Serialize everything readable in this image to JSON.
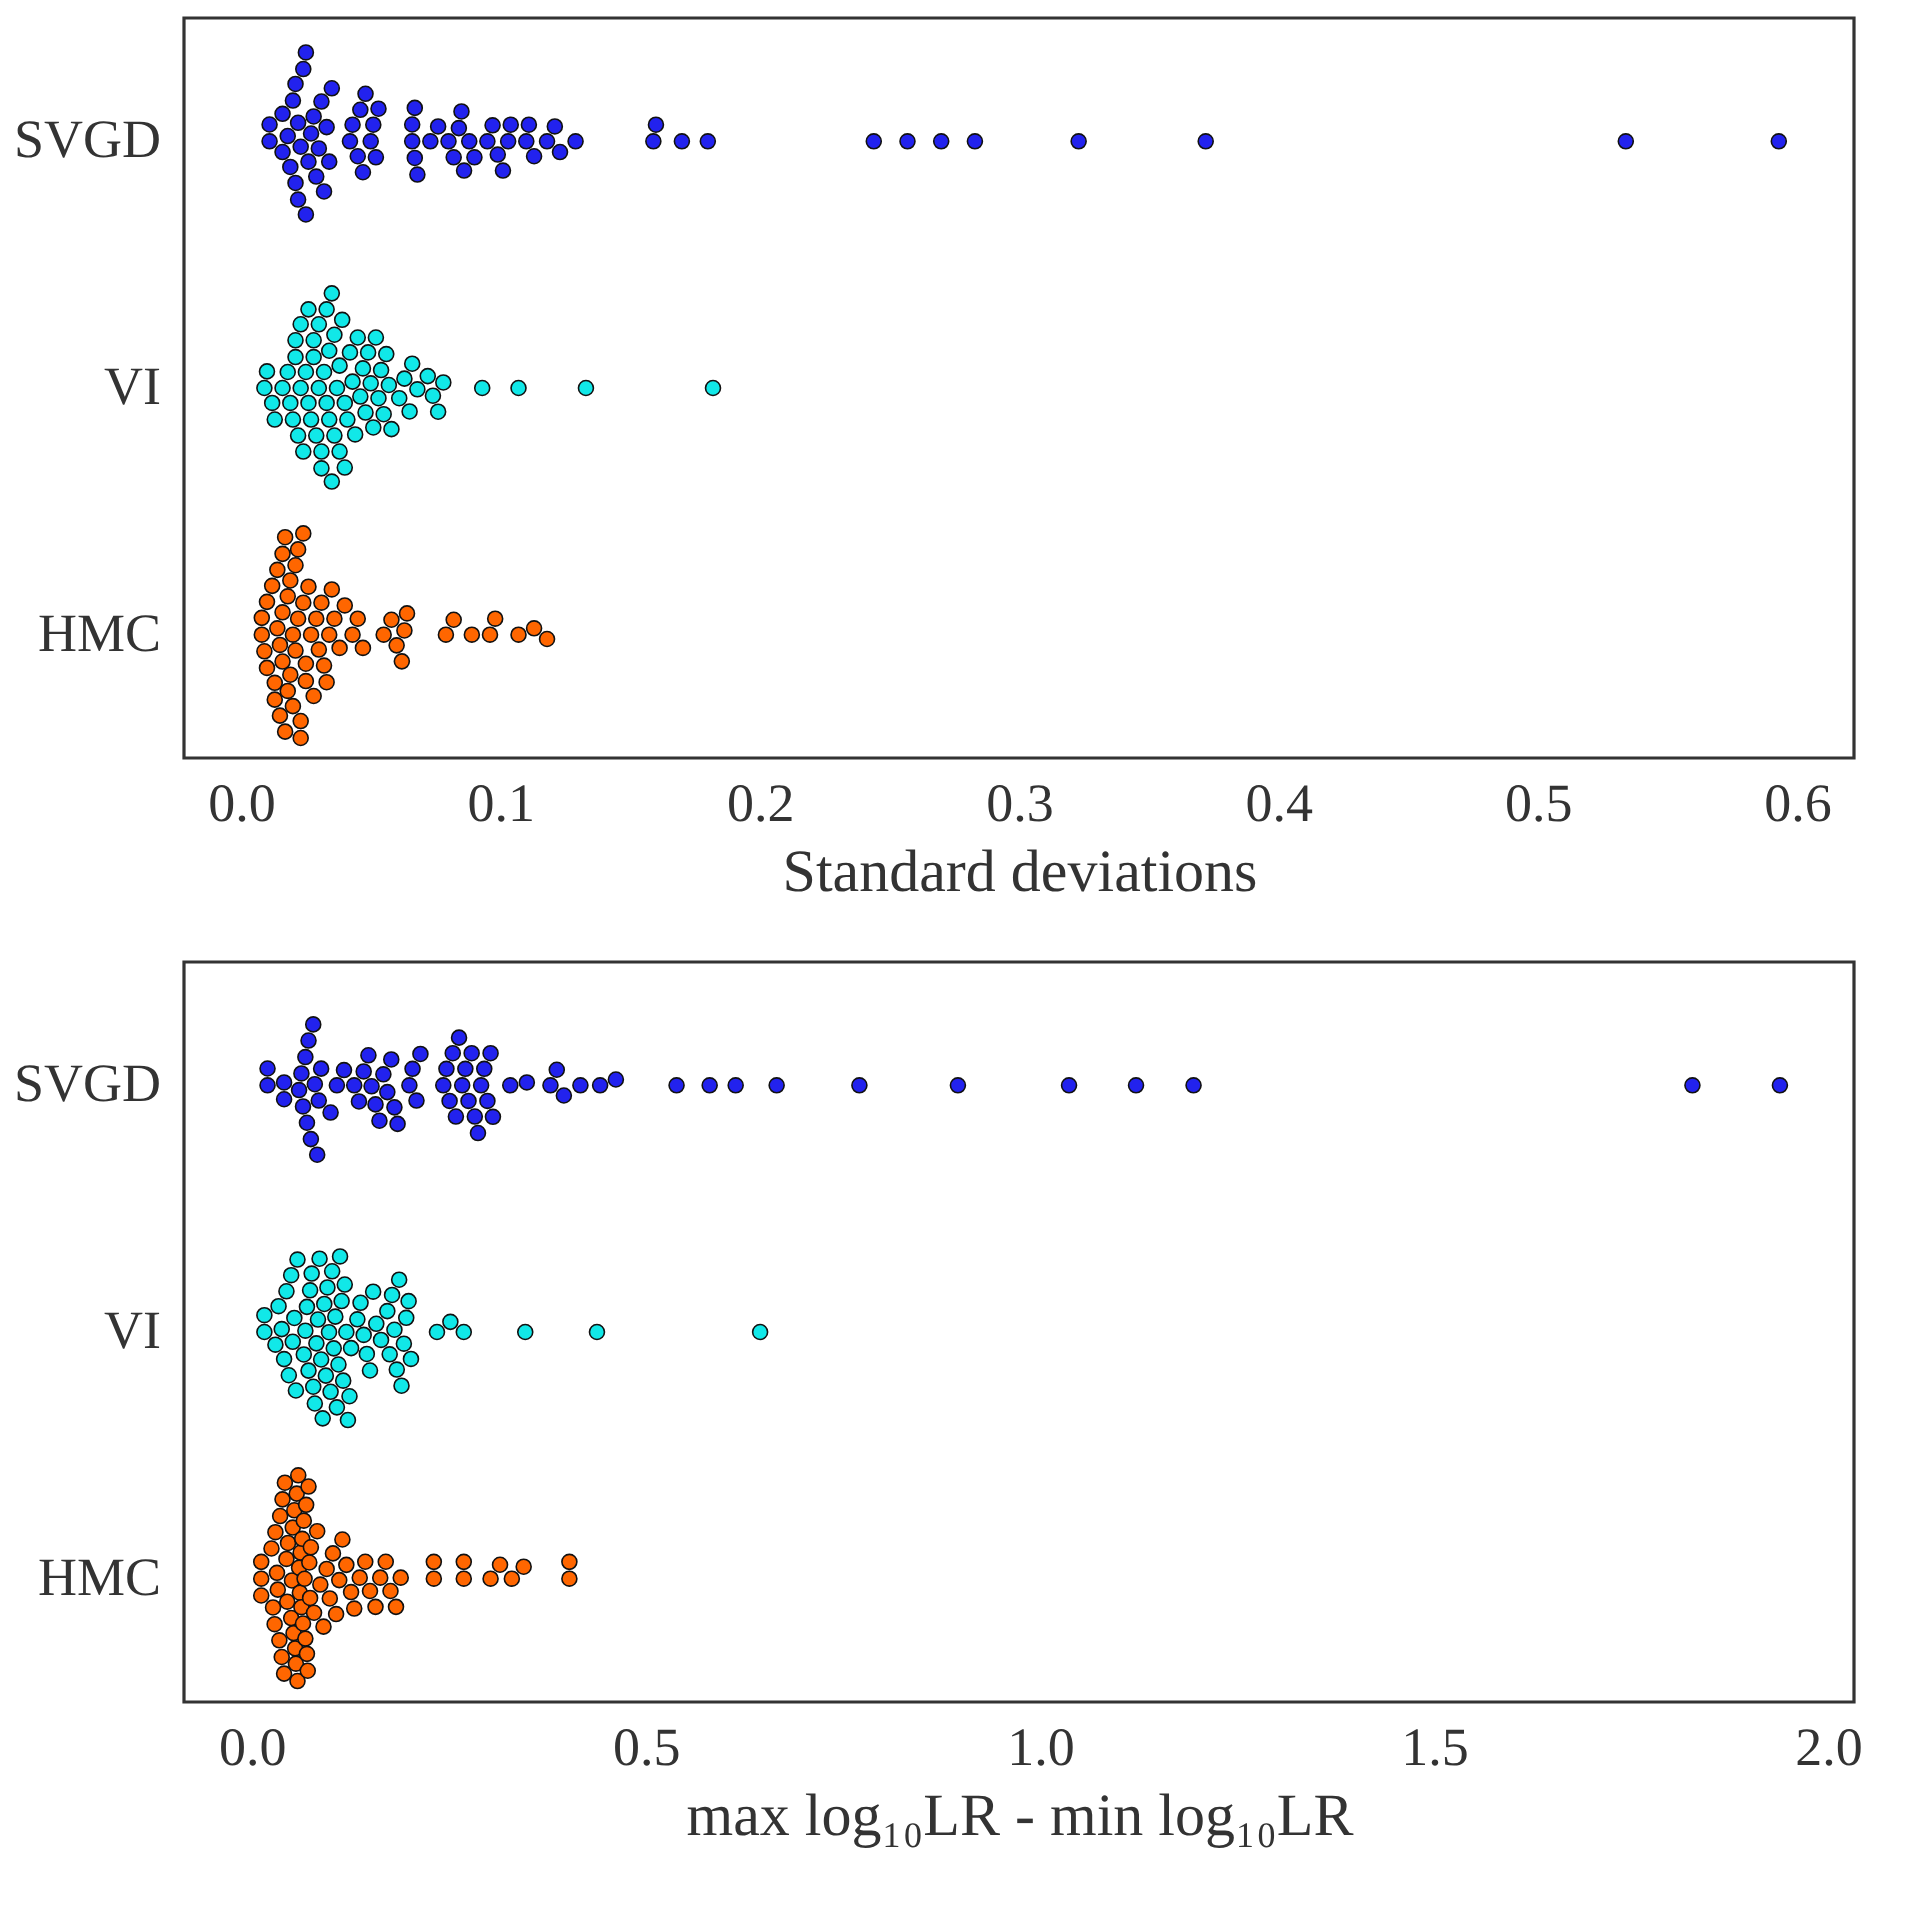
{
  "chart_data": [
    {
      "type": "scatter",
      "orientation": "horizontal",
      "categories": [
        "SVGD",
        "VI",
        "HMC"
      ],
      "xlabel": "Standard deviations",
      "xlim": [
        -0.022,
        0.622
      ],
      "xticks": [
        {
          "value": 0,
          "label": "0.0"
        },
        0.1,
        0.2,
        0.3,
        0.4,
        0.5,
        0.6
      ],
      "marker": "circle",
      "grid": false,
      "series": [
        {
          "color": "#2222ee",
          "x": [
            "SVGD",
            "SVGD",
            "SVGD",
            "SVGD",
            "SVGD",
            "SVGD",
            "SVGD",
            "SVGD",
            "SVGD",
            "SVGD",
            "SVGD",
            "SVGD",
            "SVGD",
            "SVGD",
            "SVGD",
            "SVGD",
            "SVGD",
            "SVGD",
            "SVGD",
            "SVGD",
            "SVGD",
            "SVGD",
            "SVGD",
            "SVGD",
            "SVGD",
            "SVGD",
            "SVGD",
            "SVGD",
            "SVGD",
            "SVGD",
            "SVGD",
            "SVGD",
            "SVGD",
            "SVGD",
            "SVGD",
            "SVGD",
            "SVGD",
            "SVGD",
            "SVGD",
            "SVGD",
            "SVGD",
            "SVGD",
            "SVGD",
            "SVGD",
            "SVGD",
            "SVGD",
            "SVGD",
            "SVGD",
            "SVGD",
            "SVGD",
            "SVGD",
            "SVGD",
            "SVGD",
            "SVGD",
            "SVGD",
            "SVGD",
            "SVGD",
            "SVGD",
            "SVGD",
            "SVGD",
            "SVGD",
            "SVGD",
            "SVGD",
            "SVGD",
            "SVGD",
            "SVGD",
            "SVGD",
            "SVGD",
            "SVGD",
            "SVGD",
            "SVGD",
            "SVGD",
            "SVGD",
            "SVGD"
          ],
          "values": [
            0.011,
            0.011,
            0.016,
            0.016,
            0.018,
            0.019,
            0.02,
            0.021,
            0.021,
            0.022,
            0.022,
            0.023,
            0.024,
            0.025,
            0.025,
            0.026,
            0.027,
            0.028,
            0.029,
            0.03,
            0.031,
            0.032,
            0.033,
            0.034,
            0.035,
            0.042,
            0.043,
            0.045,
            0.046,
            0.047,
            0.048,
            0.05,
            0.051,
            0.052,
            0.053,
            0.066,
            0.066,
            0.067,
            0.067,
            0.068,
            0.073,
            0.076,
            0.08,
            0.082,
            0.084,
            0.085,
            0.086,
            0.088,
            0.09,
            0.095,
            0.097,
            0.099,
            0.101,
            0.103,
            0.104,
            0.11,
            0.111,
            0.113,
            0.118,
            0.121,
            0.123,
            0.129,
            0.159,
            0.16,
            0.17,
            0.18,
            0.244,
            0.257,
            0.27,
            0.283,
            0.323,
            0.372,
            0.534,
            0.593
          ]
        },
        {
          "color": "#11e8e8",
          "x": [
            "VI",
            "VI",
            "VI",
            "VI",
            "VI",
            "VI",
            "VI",
            "VI",
            "VI",
            "VI",
            "VI",
            "VI",
            "VI",
            "VI",
            "VI",
            "VI",
            "VI",
            "VI",
            "VI",
            "VI",
            "VI",
            "VI",
            "VI",
            "VI",
            "VI",
            "VI",
            "VI",
            "VI",
            "VI",
            "VI",
            "VI",
            "VI",
            "VI",
            "VI",
            "VI",
            "VI",
            "VI",
            "VI",
            "VI",
            "VI",
            "VI",
            "VI",
            "VI",
            "VI",
            "VI",
            "VI",
            "VI",
            "VI",
            "VI",
            "VI",
            "VI",
            "VI",
            "VI",
            "VI",
            "VI",
            "VI",
            "VI",
            "VI",
            "VI",
            "VI",
            "VI",
            "VI",
            "VI",
            "VI",
            "VI",
            "VI",
            "VI",
            "VI",
            "VI",
            "VI",
            "VI"
          ],
          "values": [
            0.009,
            0.01,
            0.012,
            0.013,
            0.016,
            0.018,
            0.019,
            0.02,
            0.021,
            0.021,
            0.022,
            0.023,
            0.023,
            0.024,
            0.025,
            0.026,
            0.026,
            0.027,
            0.028,
            0.028,
            0.029,
            0.03,
            0.03,
            0.031,
            0.031,
            0.032,
            0.033,
            0.033,
            0.034,
            0.034,
            0.035,
            0.035,
            0.036,
            0.036,
            0.037,
            0.038,
            0.038,
            0.039,
            0.04,
            0.04,
            0.041,
            0.042,
            0.043,
            0.044,
            0.045,
            0.046,
            0.047,
            0.048,
            0.049,
            0.05,
            0.051,
            0.052,
            0.053,
            0.054,
            0.055,
            0.056,
            0.057,
            0.058,
            0.061,
            0.063,
            0.065,
            0.066,
            0.068,
            0.072,
            0.074,
            0.076,
            0.078,
            0.093,
            0.107,
            0.133,
            0.182
          ]
        },
        {
          "color": "#ff6600",
          "x": [
            "HMC",
            "HMC",
            "HMC",
            "HMC",
            "HMC",
            "HMC",
            "HMC",
            "HMC",
            "HMC",
            "HMC",
            "HMC",
            "HMC",
            "HMC",
            "HMC",
            "HMC",
            "HMC",
            "HMC",
            "HMC",
            "HMC",
            "HMC",
            "HMC",
            "HMC",
            "HMC",
            "HMC",
            "HMC",
            "HMC",
            "HMC",
            "HMC",
            "HMC",
            "HMC",
            "HMC",
            "HMC",
            "HMC",
            "HMC",
            "HMC",
            "HMC",
            "HMC",
            "HMC",
            "HMC",
            "HMC",
            "HMC",
            "HMC",
            "HMC",
            "HMC",
            "HMC",
            "HMC",
            "HMC",
            "HMC",
            "HMC",
            "HMC",
            "HMC",
            "HMC",
            "HMC",
            "HMC",
            "HMC",
            "HMC",
            "HMC",
            "HMC",
            "HMC",
            "HMC",
            "HMC",
            "HMC",
            "HMC"
          ],
          "values": [
            0.008,
            0.008,
            0.009,
            0.01,
            0.01,
            0.012,
            0.013,
            0.013,
            0.014,
            0.014,
            0.015,
            0.015,
            0.016,
            0.016,
            0.016,
            0.017,
            0.017,
            0.018,
            0.018,
            0.019,
            0.019,
            0.02,
            0.02,
            0.021,
            0.021,
            0.022,
            0.022,
            0.023,
            0.023,
            0.024,
            0.024,
            0.025,
            0.025,
            0.026,
            0.027,
            0.028,
            0.029,
            0.03,
            0.031,
            0.032,
            0.033,
            0.034,
            0.035,
            0.036,
            0.038,
            0.04,
            0.043,
            0.045,
            0.047,
            0.055,
            0.058,
            0.06,
            0.062,
            0.063,
            0.064,
            0.079,
            0.082,
            0.089,
            0.096,
            0.098,
            0.107,
            0.113,
            0.118
          ]
        }
      ]
    },
    {
      "type": "scatter",
      "orientation": "horizontal",
      "categories": [
        "SVGD",
        "VI",
        "HMC"
      ],
      "xlabel": "max log₁₀LR - min log₁₀LR",
      "xlim": [
        -0.086,
        2.033
      ],
      "xticks": [
        {
          "value": 0,
          "label": "0.0"
        },
        0.5,
        {
          "value": 1,
          "label": "1.0"
        },
        1.5,
        {
          "value": 2,
          "label": "2.0"
        }
      ],
      "marker": "circle",
      "grid": false,
      "series": [
        {
          "color": "#2222ee",
          "x": [
            "SVGD",
            "SVGD",
            "SVGD",
            "SVGD",
            "SVGD",
            "SVGD",
            "SVGD",
            "SVGD",
            "SVGD",
            "SVGD",
            "SVGD",
            "SVGD",
            "SVGD",
            "SVGD",
            "SVGD",
            "SVGD",
            "SVGD",
            "SVGD",
            "SVGD",
            "SVGD",
            "SVGD",
            "SVGD",
            "SVGD",
            "SVGD",
            "SVGD",
            "SVGD",
            "SVGD",
            "SVGD",
            "SVGD",
            "SVGD",
            "SVGD",
            "SVGD",
            "SVGD",
            "SVGD",
            "SVGD",
            "SVGD",
            "SVGD",
            "SVGD",
            "SVGD",
            "SVGD",
            "SVGD",
            "SVGD",
            "SVGD",
            "SVGD",
            "SVGD",
            "SVGD",
            "SVGD",
            "SVGD",
            "SVGD",
            "SVGD",
            "SVGD",
            "SVGD",
            "SVGD",
            "SVGD",
            "SVGD",
            "SVGD",
            "SVGD",
            "SVGD",
            "SVGD",
            "SVGD",
            "SVGD",
            "SVGD",
            "SVGD",
            "SVGD",
            "SVGD",
            "SVGD",
            "SVGD",
            "SVGD",
            "SVGD",
            "SVGD",
            "SVGD"
          ],
          "values": [
            0.02,
            0.02,
            0.041,
            0.041,
            0.06,
            0.063,
            0.065,
            0.068,
            0.07,
            0.072,
            0.075,
            0.078,
            0.08,
            0.083,
            0.085,
            0.088,
            0.1,
            0.108,
            0.117,
            0.13,
            0.136,
            0.142,
            0.148,
            0.152,
            0.157,
            0.162,
            0.167,
            0.172,
            0.177,
            0.181,
            0.185,
            0.2,
            0.204,
            0.209,
            0.214,
            0.243,
            0.247,
            0.251,
            0.255,
            0.259,
            0.263,
            0.267,
            0.271,
            0.275,
            0.279,
            0.283,
            0.287,
            0.291,
            0.295,
            0.299,
            0.303,
            0.306,
            0.328,
            0.349,
            0.379,
            0.387,
            0.396,
            0.417,
            0.442,
            0.462,
            0.539,
            0.581,
            0.614,
            0.666,
            0.771,
            0.896,
            1.037,
            1.122,
            1.195,
            1.828,
            1.939
          ]
        },
        {
          "color": "#11e8e8",
          "x": [
            "VI",
            "VI",
            "VI",
            "VI",
            "VI",
            "VI",
            "VI",
            "VI",
            "VI",
            "VI",
            "VI",
            "VI",
            "VI",
            "VI",
            "VI",
            "VI",
            "VI",
            "VI",
            "VI",
            "VI",
            "VI",
            "VI",
            "VI",
            "VI",
            "VI",
            "VI",
            "VI",
            "VI",
            "VI",
            "VI",
            "VI",
            "VI",
            "VI",
            "VI",
            "VI",
            "VI",
            "VI",
            "VI",
            "VI",
            "VI",
            "VI",
            "VI",
            "VI",
            "VI",
            "VI",
            "VI",
            "VI",
            "VI",
            "VI",
            "VI",
            "VI",
            "VI",
            "VI",
            "VI",
            "VI",
            "VI",
            "VI",
            "VI",
            "VI",
            "VI",
            "VI",
            "VI",
            "VI",
            "VI",
            "VI",
            "VI",
            "VI",
            "VI",
            "VI"
          ],
          "values": [
            0.016,
            0.016,
            0.03,
            0.034,
            0.038,
            0.041,
            0.044,
            0.047,
            0.05,
            0.052,
            0.054,
            0.056,
            0.058,
            0.066,
            0.068,
            0.07,
            0.072,
            0.074,
            0.076,
            0.078,
            0.08,
            0.082,
            0.084,
            0.086,
            0.088,
            0.09,
            0.092,
            0.094,
            0.096,
            0.098,
            0.1,
            0.102,
            0.104,
            0.106,
            0.108,
            0.11,
            0.112,
            0.114,
            0.116,
            0.118,
            0.12,
            0.122,
            0.124,
            0.126,
            0.134,
            0.138,
            0.142,
            0.146,
            0.15,
            0.154,
            0.158,
            0.164,
            0.172,
            0.175,
            0.178,
            0.181,
            0.184,
            0.187,
            0.19,
            0.193,
            0.196,
            0.199,
            0.202,
            0.235,
            0.252,
            0.269,
            0.347,
            0.438,
            0.645
          ]
        },
        {
          "color": "#ff6600",
          "x": [
            "HMC",
            "HMC",
            "HMC",
            "HMC",
            "HMC",
            "HMC",
            "HMC",
            "HMC",
            "HMC",
            "HMC",
            "HMC",
            "HMC",
            "HMC",
            "HMC",
            "HMC",
            "HMC",
            "HMC",
            "HMC",
            "HMC",
            "HMC",
            "HMC",
            "HMC",
            "HMC",
            "HMC",
            "HMC",
            "HMC",
            "HMC",
            "HMC",
            "HMC",
            "HMC",
            "HMC",
            "HMC",
            "HMC",
            "HMC",
            "HMC",
            "HMC",
            "HMC",
            "HMC",
            "HMC",
            "HMC",
            "HMC",
            "HMC",
            "HMC",
            "HMC",
            "HMC",
            "HMC",
            "HMC",
            "HMC",
            "HMC",
            "HMC",
            "HMC",
            "HMC",
            "HMC",
            "HMC",
            "HMC",
            "HMC",
            "HMC",
            "HMC",
            "HMC",
            "HMC",
            "HMC",
            "HMC",
            "HMC",
            "HMC",
            "HMC",
            "HMC",
            "HMC",
            "HMC",
            "HMC",
            "HMC",
            "HMC",
            "HMC",
            "HMC",
            "HMC",
            "HMC",
            "HMC"
          ],
          "values": [
            0.012,
            0.012,
            0.012,
            0.025,
            0.027,
            0.029,
            0.03,
            0.032,
            0.033,
            0.035,
            0.036,
            0.038,
            0.039,
            0.041,
            0.042,
            0.044,
            0.045,
            0.046,
            0.05,
            0.051,
            0.052,
            0.053,
            0.054,
            0.055,
            0.056,
            0.057,
            0.058,
            0.059,
            0.06,
            0.061,
            0.062,
            0.063,
            0.064,
            0.065,
            0.066,
            0.067,
            0.068,
            0.069,
            0.07,
            0.071,
            0.072,
            0.073,
            0.074,
            0.075,
            0.079,
            0.083,
            0.087,
            0.091,
            0.095,
            0.099,
            0.103,
            0.107,
            0.111,
            0.115,
            0.12,
            0.126,
            0.13,
            0.137,
            0.144,
            0.15,
            0.157,
            0.163,
            0.17,
            0.176,
            0.183,
            0.189,
            0.231,
            0.231,
            0.269,
            0.269,
            0.303,
            0.315,
            0.33,
            0.345,
            0.403,
            0.403
          ]
        }
      ]
    }
  ]
}
